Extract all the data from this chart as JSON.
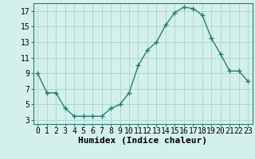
{
  "x": [
    0,
    1,
    2,
    3,
    4,
    5,
    6,
    7,
    8,
    9,
    10,
    11,
    12,
    13,
    14,
    15,
    16,
    17,
    18,
    19,
    20,
    21,
    22,
    23
  ],
  "y": [
    9,
    6.5,
    6.5,
    4.5,
    3.5,
    3.5,
    3.5,
    3.5,
    4.5,
    5,
    6.5,
    10,
    12,
    13,
    15.2,
    16.8,
    17.5,
    17.3,
    16.5,
    13.5,
    11.5,
    9.3,
    9.3,
    8
  ],
  "line_color": "#2a7d6e",
  "marker": "+",
  "marker_size": 4,
  "bg_color": "#d4f0ec",
  "grid_color": "#a8d4ce",
  "xlabel": "Humidex (Indice chaleur)",
  "xlim": [
    -0.5,
    23.5
  ],
  "ylim": [
    2.5,
    18
  ],
  "yticks": [
    3,
    5,
    7,
    9,
    11,
    13,
    15,
    17
  ],
  "xticks": [
    0,
    1,
    2,
    3,
    4,
    5,
    6,
    7,
    8,
    9,
    10,
    11,
    12,
    13,
    14,
    15,
    16,
    17,
    18,
    19,
    20,
    21,
    22,
    23
  ],
  "xlabel_fontsize": 8,
  "tick_fontsize": 7,
  "line_width": 1.0
}
